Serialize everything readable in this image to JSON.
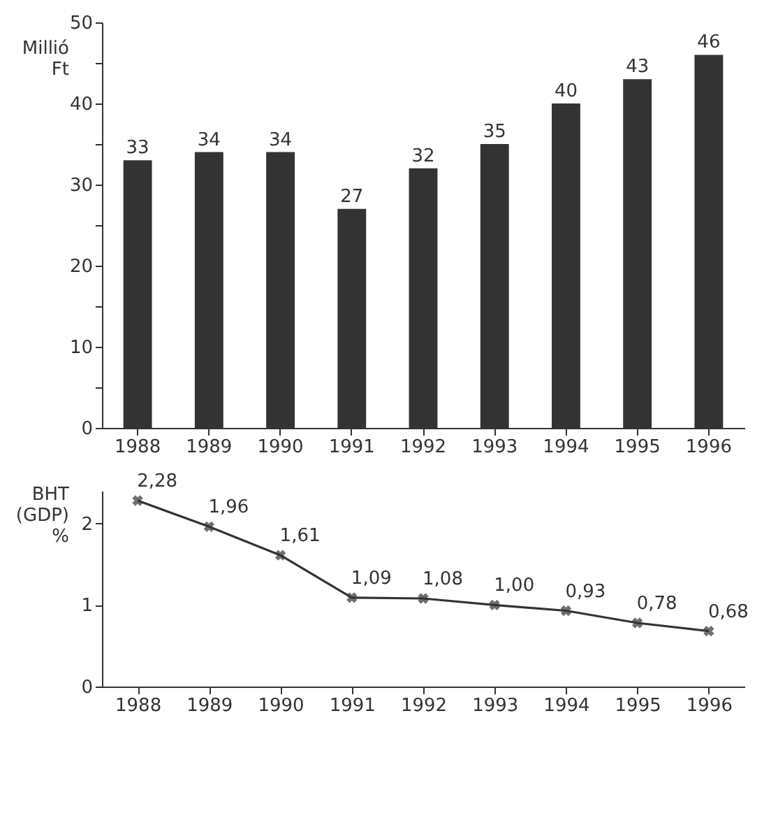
{
  "chart_data": [
    {
      "type": "bar",
      "ylabel": "Millió Ft",
      "categories": [
        "1988",
        "1989",
        "1990",
        "1991",
        "1992",
        "1993",
        "1994",
        "1995",
        "1996"
      ],
      "series": [
        {
          "color": "#333333",
          "values": [
            33,
            34,
            34,
            27,
            32,
            35,
            40,
            43,
            46
          ]
        }
      ],
      "ylim": [
        0,
        50
      ],
      "yticks": [
        0,
        {
          "value": 5,
          "label": null
        },
        10,
        {
          "value": 15,
          "label": null
        },
        20,
        {
          "value": 25,
          "label": null
        },
        30,
        {
          "value": 35,
          "label": null
        },
        40,
        {
          "value": 45,
          "label": null
        },
        50
      ],
      "data_labels": true
    },
    {
      "type": "line",
      "ylabel": "BHT (GDP) %",
      "categories": [
        "1988",
        "1989",
        "1990",
        "1991",
        "1992",
        "1993",
        "1994",
        "1995",
        "1996"
      ],
      "series": [
        {
          "color": "#333333",
          "values": [
            2.28,
            1.96,
            1.61,
            1.09,
            1.08,
            1.0,
            0.93,
            0.78,
            0.68
          ],
          "value_labels": [
            "2,28",
            "1,96",
            "1,61",
            "1,09",
            "1,08",
            "1,00",
            "0,93",
            "0,78",
            "0,68"
          ]
        }
      ],
      "ylim": [
        0,
        2.4
      ],
      "yticks": [
        0,
        1,
        2
      ],
      "marker": "cross",
      "line_style": "solid"
    }
  ]
}
